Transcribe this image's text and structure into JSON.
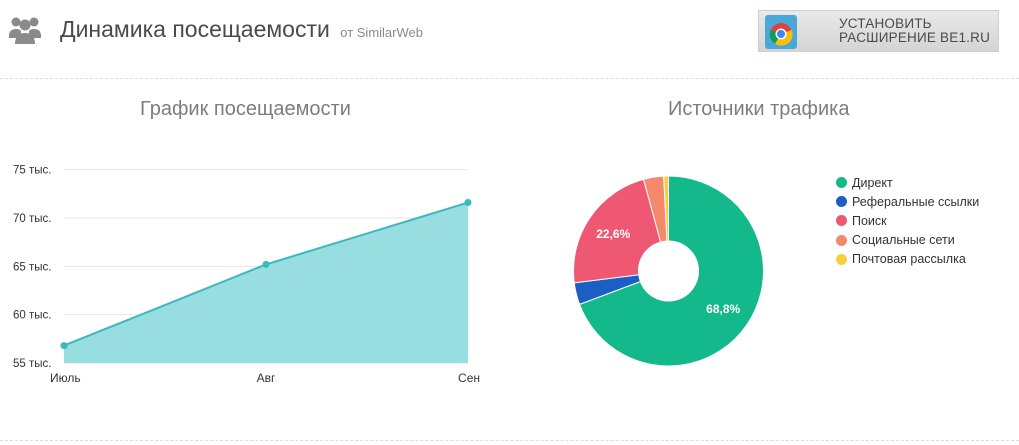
{
  "header": {
    "title": "Динамика посещаемости",
    "title_source": "от SimilarWeb",
    "icon": "users-icon",
    "banner": {
      "line1": "УСТАНОВИТЬ",
      "line2": "РАСШИРЕНИЕ BE1.RU",
      "icon": "chrome-store-icon"
    }
  },
  "sections": {
    "visits_title": "График посещаемости",
    "sources_title": "Источники трафика"
  },
  "chart_data": [
    {
      "type": "area",
      "title": "График посещаемости",
      "categories": [
        "Июль",
        "Авг",
        "Сен"
      ],
      "values": [
        56800,
        65200,
        71600
      ],
      "y_ticks": [
        "55 тыс.",
        "60 тыс.",
        "65 тыс.",
        "70 тыс.",
        "75 тыс."
      ],
      "ylim": [
        55000,
        76000
      ],
      "grid": true,
      "color": "#4fc8cf"
    },
    {
      "type": "pie",
      "title": "Источники трафика",
      "donut": true,
      "legend_position": "right",
      "slices": [
        {
          "label": "Директ",
          "value": 68.8,
          "color": "#13b98a",
          "data_label": "68,8%"
        },
        {
          "label": "Реферальные ссылки",
          "value": 3.7,
          "color": "#1c5fc4",
          "data_label": ""
        },
        {
          "label": "Поиск",
          "value": 22.6,
          "color": "#ee5872",
          "data_label": "22,6%"
        },
        {
          "label": "Социальные сети",
          "value": 3.4,
          "color": "#f48a6b",
          "data_label": ""
        },
        {
          "label": "Почтовая рассылка",
          "value": 0.8,
          "color": "#f7cf3e",
          "data_label": ""
        }
      ]
    }
  ]
}
